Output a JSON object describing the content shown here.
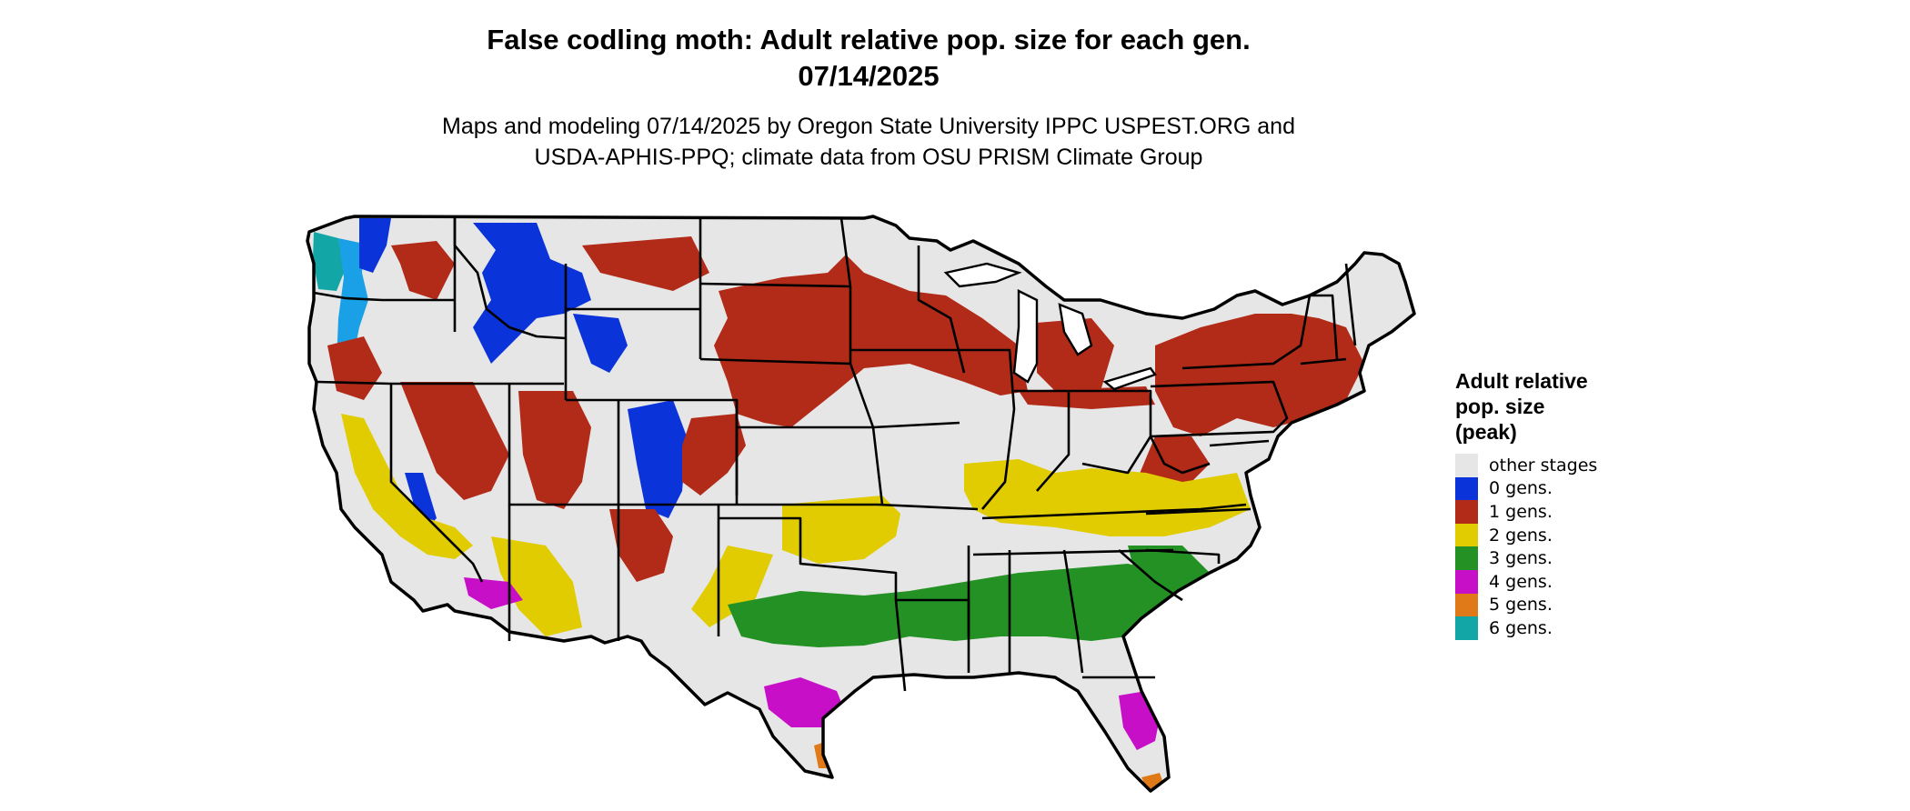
{
  "title_line1": "False codling moth: Adult relative pop. size for each gen.",
  "title_line2": "07/14/2025",
  "subtitle_line1": "Maps and modeling 07/14/2025 by Oregon State University IPPC USPEST.ORG and",
  "subtitle_line2": "USDA-APHIS-PPQ; climate data from OSU PRISM Climate Group",
  "legend": {
    "title": "Adult relative\npop. size\n(peak)",
    "items": [
      {
        "label": "other stages",
        "color": "#e6e6e6"
      },
      {
        "label": "0 gens.",
        "color": "#0a33d9"
      },
      {
        "label": "1 gens.",
        "color": "#b22a18"
      },
      {
        "label": "2 gens.",
        "color": "#e0cc00"
      },
      {
        "label": "3 gens.",
        "color": "#239123"
      },
      {
        "label": "4 gens.",
        "color": "#c70fc7"
      },
      {
        "label": "5 gens.",
        "color": "#e07a18"
      },
      {
        "label": "6 gens.",
        "color": "#13a6a6"
      }
    ]
  },
  "map": {
    "region": "Contiguous United States",
    "land_color": "#e6e6e6",
    "border_color": "#000000",
    "zones": [
      {
        "gens": "0 gens.",
        "color": "#0a33d9",
        "areas": [
          "Rocky Mountains (Idaho, Montana, Wyoming, Colorado)",
          "Cascades (Washington)",
          "Sierra Nevada"
        ]
      },
      {
        "gens": "1 gens.",
        "color": "#b22a18",
        "areas": [
          "Northern Plains",
          "Upper Midwest",
          "Great Basin",
          "Northeast",
          "Colorado plateau"
        ]
      },
      {
        "gens": "2 gens.",
        "color": "#e0cc00",
        "areas": [
          "Central Valley (California)",
          "Kansas/Oklahoma",
          "Ohio Valley",
          "Mid-Atlantic"
        ]
      },
      {
        "gens": "3 gens.",
        "color": "#239123",
        "areas": [
          "Gulf Coast states",
          "Southeast"
        ]
      },
      {
        "gens": "4 gens.",
        "color": "#c70fc7",
        "areas": [
          "South Texas",
          "Central Florida",
          "Southern Arizona"
        ]
      },
      {
        "gens": "5 gens.",
        "color": "#e07a18",
        "areas": [
          "South Florida tip",
          "Texas coast"
        ]
      },
      {
        "gens": "6 gens.",
        "color": "#13a6a6",
        "areas": [
          "Washington coast"
        ]
      }
    ]
  }
}
